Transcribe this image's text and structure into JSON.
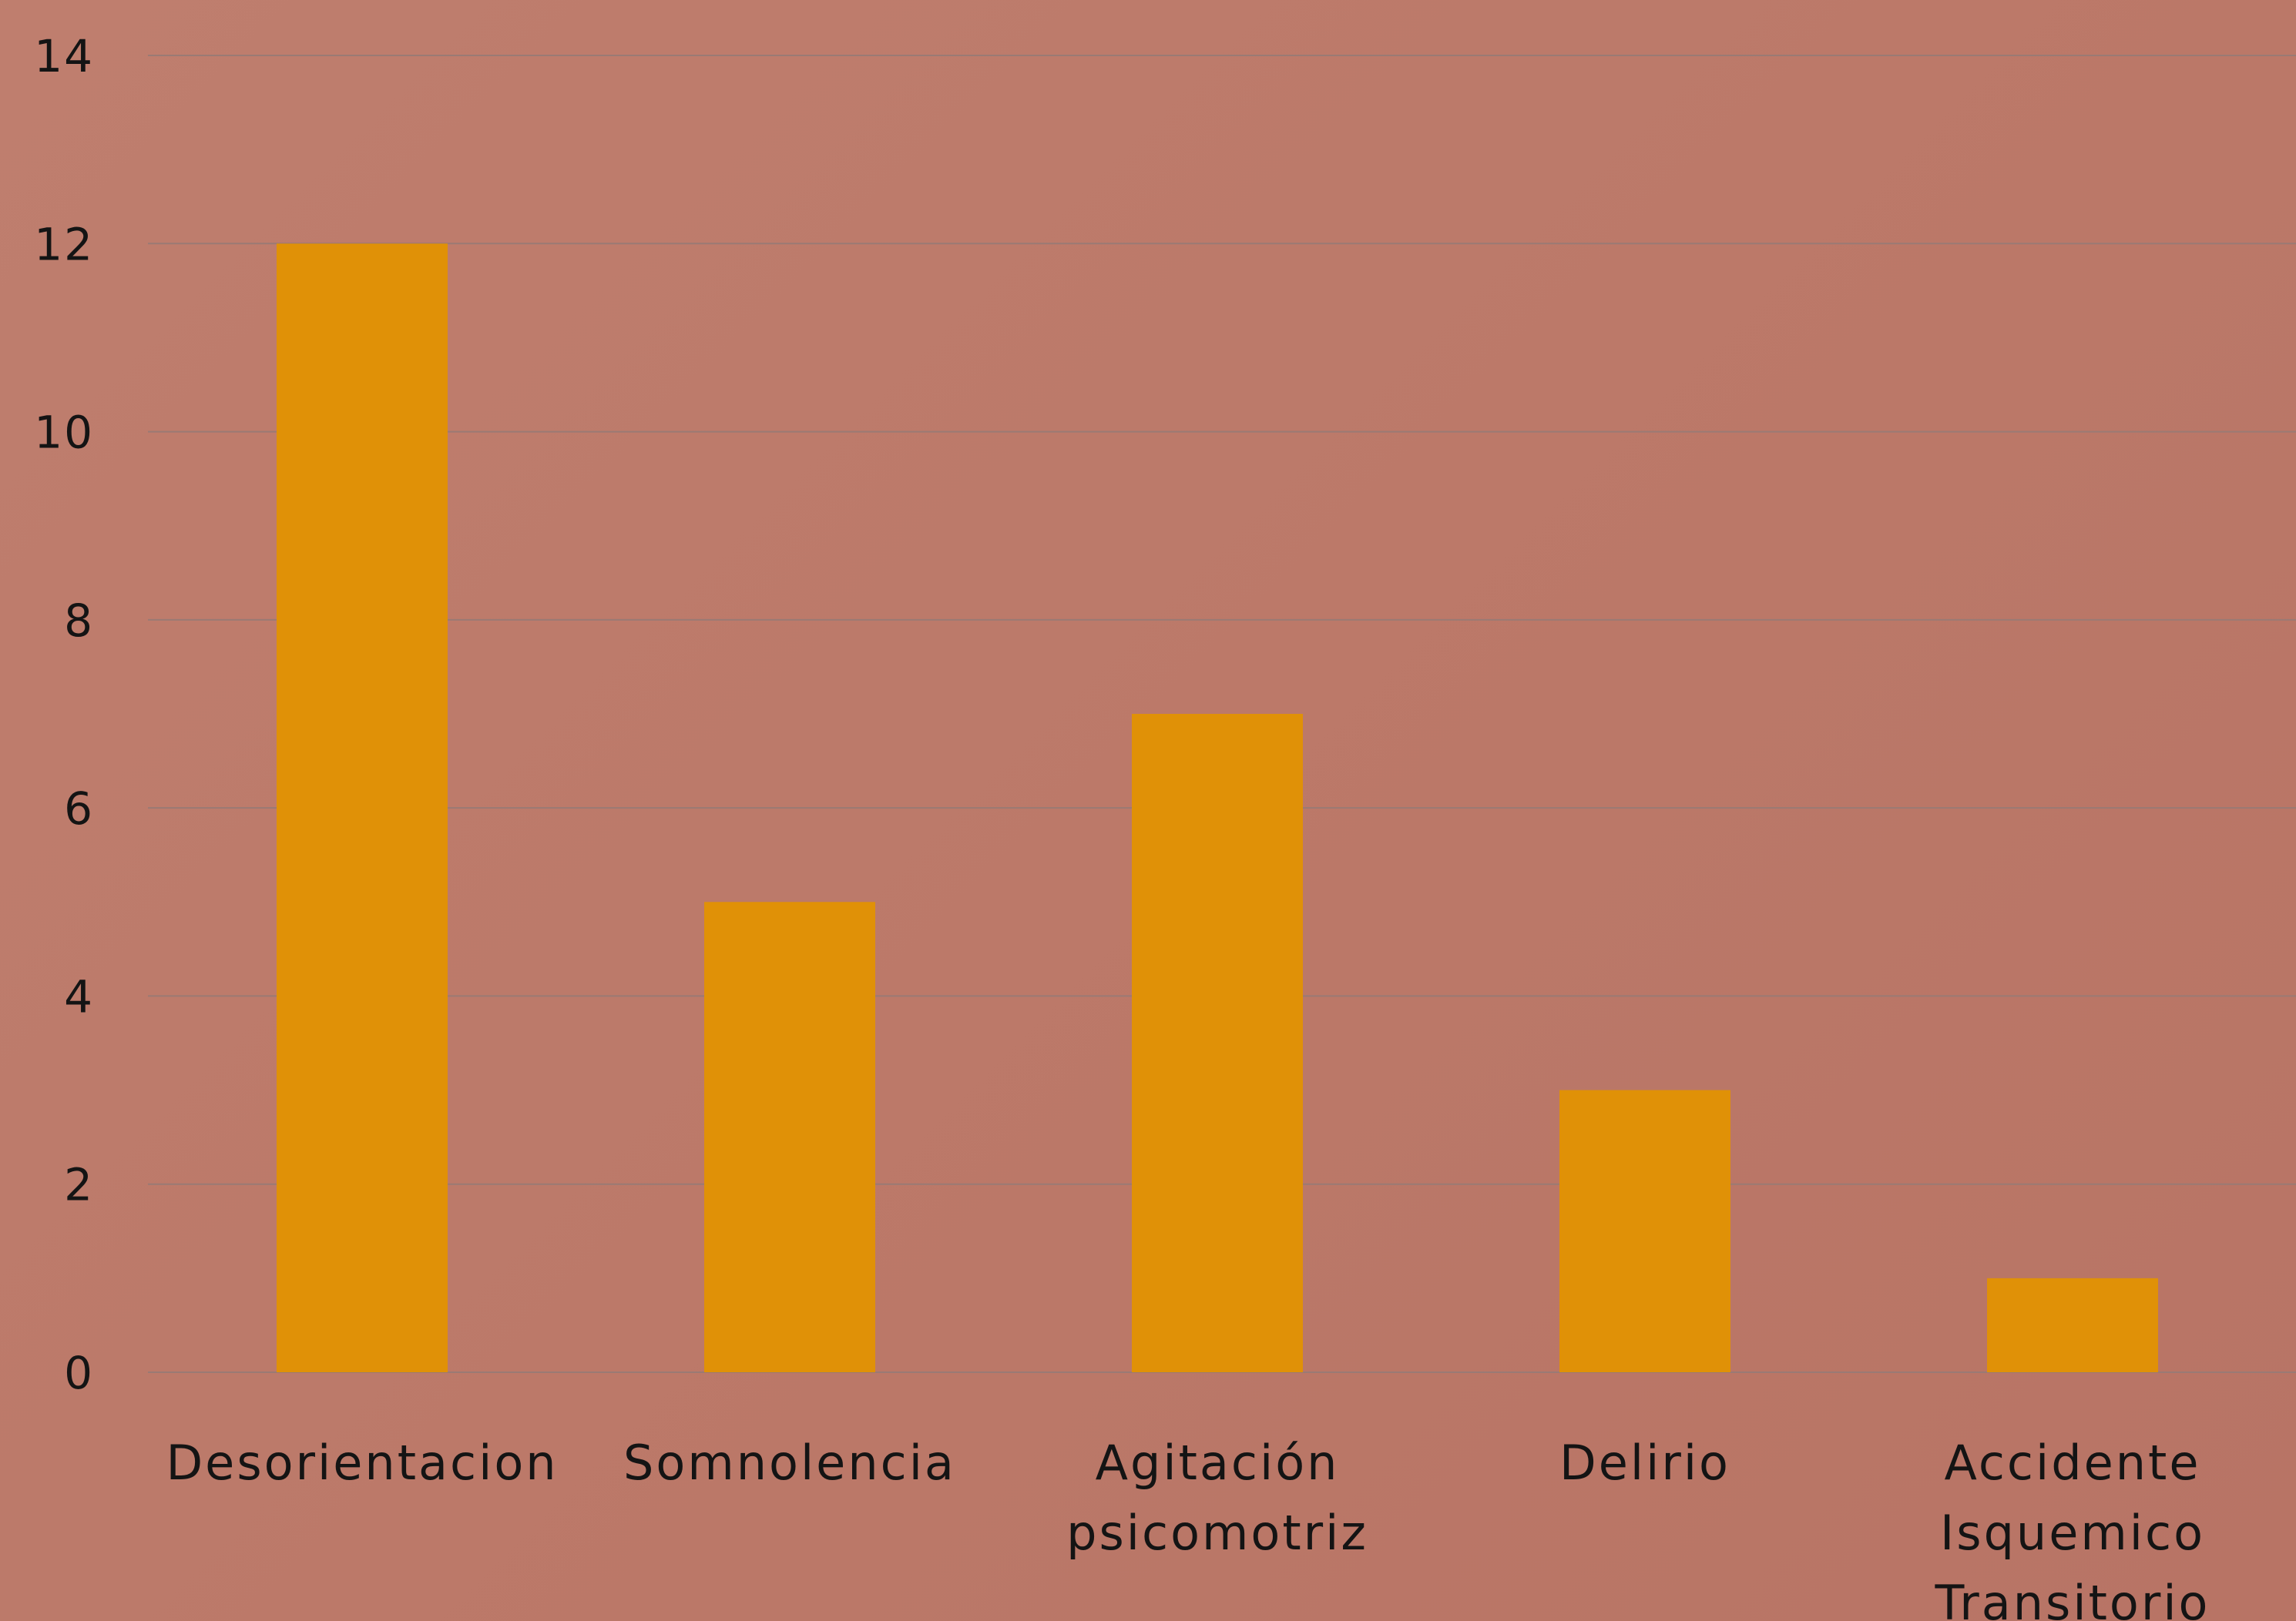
{
  "chart_data": {
    "type": "bar",
    "categories": [
      [
        "Desorientacion"
      ],
      [
        "Somnolencia"
      ],
      [
        "Agitación",
        "psicomotriz"
      ],
      [
        "Delirio"
      ],
      [
        "Accidente",
        "Isquemico",
        "Transitorio"
      ]
    ],
    "values": [
      12,
      5,
      7,
      3,
      1
    ],
    "ylim": [
      0,
      14
    ],
    "yticks": [
      0,
      2,
      4,
      6,
      8,
      10,
      12,
      14
    ],
    "grid": true,
    "colors": {
      "bar": "#e09107",
      "grid": "#9a7a74",
      "text": "#141414"
    }
  }
}
